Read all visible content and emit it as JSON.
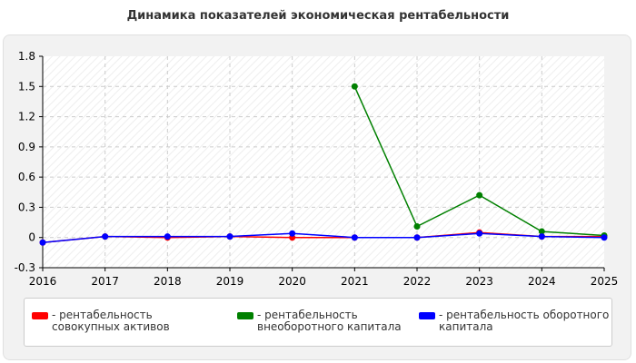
{
  "chart_data": {
    "type": "line",
    "title": "Динамика показателей экономическая рентабельности",
    "x": [
      "2016",
      "2017",
      "2018",
      "2019",
      "2020",
      "2021",
      "2022",
      "2023",
      "2024",
      "2025"
    ],
    "series": [
      {
        "name": "- рентабельность совокупных активов",
        "values": [
          -0.05,
          0.01,
          0.0,
          0.01,
          0.0,
          0.0,
          0.0,
          0.05,
          0.01,
          0.01
        ],
        "color": "#ff0000"
      },
      {
        "name": "- рентабельность внеоборотного капитала",
        "values": [
          null,
          null,
          null,
          null,
          null,
          1.5,
          0.11,
          0.42,
          0.06,
          0.02
        ],
        "color": "#008000"
      },
      {
        "name": "- рентабельность оборотного капитала",
        "values": [
          -0.05,
          0.01,
          0.01,
          0.01,
          0.04,
          0.0,
          0.0,
          0.04,
          0.01,
          0.0
        ],
        "color": "#0000ff"
      }
    ],
    "yticks": [
      "1.8",
      "1.5",
      "1.2",
      "0.9",
      "0.6",
      "0.3",
      "0",
      "-0.3"
    ],
    "ylim": [
      -0.3,
      1.8
    ],
    "grid": true,
    "legend_position": "bottom"
  }
}
